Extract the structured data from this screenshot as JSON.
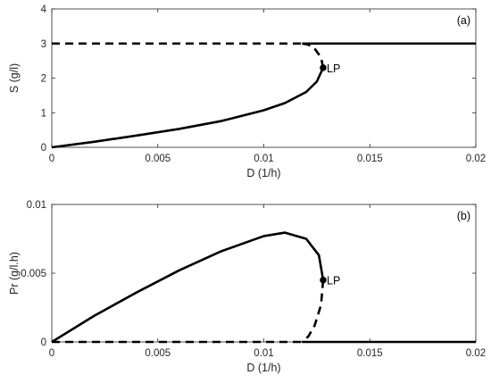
{
  "chart_data": [
    {
      "type": "line",
      "panel_label": "(a)",
      "xlabel": "D (1/h)",
      "ylabel": "S (g/l)",
      "xlim": [
        0,
        0.02
      ],
      "ylim": [
        0,
        4
      ],
      "x_ticks": [
        "0",
        "0.005",
        "0.01",
        "0.015",
        "0.02"
      ],
      "y_ticks": [
        "0",
        "1",
        "2",
        "3",
        "4"
      ],
      "grid": false,
      "annotation": {
        "label": "LP",
        "x": 0.0128,
        "y": 2.3
      },
      "series": [
        {
          "style": "solid",
          "x": [
            0,
            0.002,
            0.004,
            0.006,
            0.008,
            0.01,
            0.011,
            0.012,
            0.0125,
            0.0128
          ],
          "y": [
            0,
            0.16,
            0.34,
            0.53,
            0.76,
            1.07,
            1.28,
            1.6,
            1.9,
            2.3
          ]
        },
        {
          "style": "dashed",
          "x": [
            0.0128,
            0.0127,
            0.0124,
            0.0121,
            0.0118
          ],
          "y": [
            2.3,
            2.6,
            2.85,
            2.97,
            3.0
          ]
        },
        {
          "style": "dashed",
          "x": [
            0,
            0.0118
          ],
          "y": [
            3,
            3
          ]
        },
        {
          "style": "solid",
          "x": [
            0.0118,
            0.02
          ],
          "y": [
            3,
            3
          ]
        }
      ]
    },
    {
      "type": "line",
      "panel_label": "(b)",
      "xlabel": "D (1/h)",
      "ylabel": "Pr (g/l.h)",
      "xlim": [
        0,
        0.02
      ],
      "ylim": [
        0,
        0.01
      ],
      "x_ticks": [
        "0",
        "0.005",
        "0.01",
        "0.015",
        "0.02"
      ],
      "y_ticks": [
        "0",
        "0.005",
        "0.01"
      ],
      "grid": false,
      "annotation": {
        "label": "LP",
        "x": 0.0128,
        "y": 0.0045
      },
      "series": [
        {
          "style": "solid",
          "x": [
            0,
            0.002,
            0.004,
            0.006,
            0.008,
            0.01,
            0.011,
            0.012,
            0.0126,
            0.0128
          ],
          "y": [
            0,
            0.0019,
            0.0036,
            0.0052,
            0.0066,
            0.0077,
            0.00795,
            0.0075,
            0.0063,
            0.0045
          ]
        },
        {
          "style": "dashed",
          "x": [
            0.0128,
            0.0127,
            0.0124,
            0.0121,
            0.0118
          ],
          "y": [
            0.0045,
            0.0027,
            0.0012,
            0.0004,
            0
          ]
        },
        {
          "style": "dashed",
          "x": [
            0,
            0.0118
          ],
          "y": [
            0,
            0
          ]
        },
        {
          "style": "solid",
          "x": [
            0.0118,
            0.02
          ],
          "y": [
            0,
            0
          ]
        }
      ]
    }
  ]
}
